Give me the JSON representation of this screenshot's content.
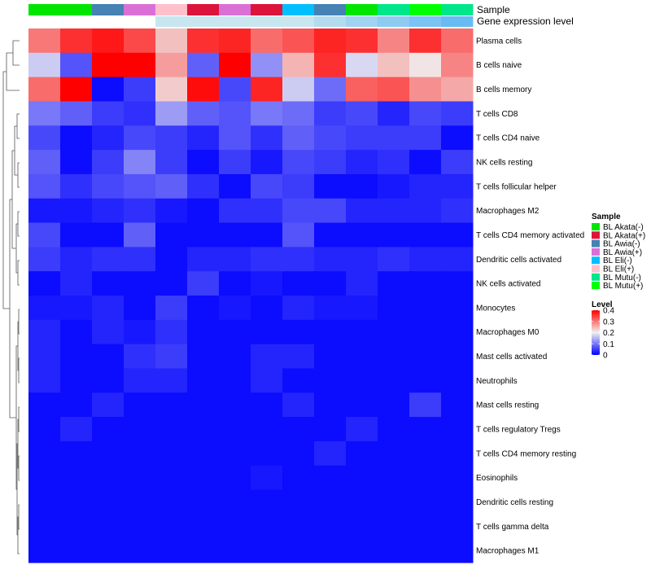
{
  "annotation_labels": [
    "Sample",
    "Gene expression level"
  ],
  "legend": {
    "sample_title": "Sample",
    "level_title": "Level",
    "samples": [
      {
        "label": "BL Akata(-)",
        "color": "#00e600"
      },
      {
        "label": "BL Akata(+)",
        "color": "#dc143c"
      },
      {
        "label": "BL Awia(-)",
        "color": "#4682b4"
      },
      {
        "label": "BL Awia(+)",
        "color": "#da70d6"
      },
      {
        "label": "BL Eli(-)",
        "color": "#00bfff"
      },
      {
        "label": "BL Eli(+)",
        "color": "#ffc0cb"
      },
      {
        "label": "BL Mutu(-)",
        "color": "#00e68a"
      },
      {
        "label": "BL Mutu(+)",
        "color": "#00ff00"
      }
    ],
    "level_ticks": [
      "0.4",
      "0.3",
      "0.2",
      "0.1",
      "0"
    ],
    "level_tick_values": [
      0.4,
      0.3,
      0.2,
      0.1,
      0
    ],
    "scale_colors": {
      "low": "#0000ff",
      "mid": "#f0f0f0",
      "high": "#ff0000"
    }
  },
  "chart_data": {
    "type": "heatmap",
    "title": "",
    "color_range": [
      0,
      0.4
    ],
    "column_sample_colors": [
      "#00e600",
      "#00e600",
      "#4682b4",
      "#da70d6",
      "#ffc0cb",
      "#dc143c",
      "#da70d6",
      "#dc143c",
      "#00bfff",
      "#4682b4",
      "#00e600",
      "#00e68a",
      "#00ff00",
      "#00e68a"
    ],
    "expression_bar_colors": [
      "#ffffff",
      "#ffffff",
      "#ffffff",
      "#ffffff",
      "#c8e6f0",
      "#c8e6f0",
      "#c8e6f0",
      "#c8e6f0",
      "#c8e6f0",
      "#b4dcef",
      "#9fd3f0",
      "#8dcbf1",
      "#7bc3f2",
      "#66bcf2"
    ],
    "rows": [
      "Plasma cells",
      "B cells naive",
      "B cells memory",
      "T cells CD8",
      "T cells CD4 naive",
      "NK cells resting",
      "T cells follicular helper",
      "Macrophages M2",
      "T cells CD4 memory activated",
      "Dendritic cells activated",
      "NK cells activated",
      "Monocytes",
      "Macrophages M0",
      "Mast cells activated",
      "Neutrophils",
      "Mast cells resting",
      "T cells regulatory  Tregs",
      "T cells CD4 memory resting",
      "Eosinophils",
      "Dendritic cells resting",
      "T cells gamma delta",
      "Macrophages M1"
    ],
    "values": [
      [
        0.3,
        0.36,
        0.38,
        0.34,
        0.24,
        0.36,
        0.37,
        0.31,
        0.33,
        0.37,
        0.36,
        0.29,
        0.36,
        0.31
      ],
      [
        0.17,
        0.07,
        0.4,
        0.4,
        0.27,
        0.08,
        0.4,
        0.12,
        0.25,
        0.36,
        0.18,
        0.24,
        0.21,
        0.29
      ],
      [
        0.31,
        0.4,
        0.01,
        0.05,
        0.23,
        0.39,
        0.06,
        0.37,
        0.17,
        0.09,
        0.32,
        0.33,
        0.28,
        0.26
      ],
      [
        0.1,
        0.08,
        0.05,
        0.04,
        0.13,
        0.08,
        0.07,
        0.1,
        0.09,
        0.05,
        0.06,
        0.03,
        0.06,
        0.05
      ],
      [
        0.06,
        0.01,
        0.03,
        0.06,
        0.05,
        0.03,
        0.07,
        0.04,
        0.08,
        0.06,
        0.05,
        0.05,
        0.05,
        0.01
      ],
      [
        0.08,
        0.01,
        0.05,
        0.11,
        0.05,
        0.01,
        0.05,
        0.02,
        0.06,
        0.05,
        0.03,
        0.04,
        0.01,
        0.05
      ],
      [
        0.07,
        0.04,
        0.06,
        0.07,
        0.08,
        0.04,
        0.01,
        0.06,
        0.05,
        0.01,
        0.01,
        0.02,
        0.03,
        0.03
      ],
      [
        0.02,
        0.02,
        0.03,
        0.04,
        0.02,
        0.01,
        0.04,
        0.04,
        0.06,
        0.06,
        0.03,
        0.03,
        0.03,
        0.04
      ],
      [
        0.06,
        0.01,
        0.01,
        0.08,
        0.01,
        0.01,
        0.01,
        0.01,
        0.07,
        0.01,
        0.01,
        0.01,
        0.01,
        0.01
      ],
      [
        0.05,
        0.03,
        0.04,
        0.04,
        0.01,
        0.03,
        0.03,
        0.04,
        0.04,
        0.03,
        0.03,
        0.04,
        0.03,
        0.03
      ],
      [
        0.01,
        0.03,
        0.01,
        0.01,
        0.01,
        0.05,
        0.01,
        0.02,
        0.01,
        0.01,
        0.03,
        0.01,
        0.01,
        0.01
      ],
      [
        0.02,
        0.02,
        0.03,
        0.01,
        0.05,
        0.01,
        0.02,
        0.01,
        0.03,
        0.02,
        0.02,
        0.01,
        0.01,
        0.01
      ],
      [
        0.03,
        0.01,
        0.03,
        0.02,
        0.04,
        0.01,
        0.01,
        0.01,
        0.01,
        0.01,
        0.01,
        0.01,
        0.01,
        0.01
      ],
      [
        0.03,
        0.01,
        0.01,
        0.04,
        0.05,
        0.01,
        0.01,
        0.03,
        0.03,
        0.01,
        0.01,
        0.01,
        0.01,
        0.01
      ],
      [
        0.03,
        0.01,
        0.01,
        0.03,
        0.03,
        0.01,
        0.01,
        0.03,
        0.01,
        0.01,
        0.01,
        0.01,
        0.01,
        0.01
      ],
      [
        0.01,
        0.01,
        0.03,
        0.01,
        0.01,
        0.01,
        0.01,
        0.01,
        0.03,
        0.01,
        0.01,
        0.01,
        0.05,
        0.01
      ],
      [
        0.01,
        0.03,
        0.01,
        0.01,
        0.01,
        0.01,
        0.01,
        0.01,
        0.01,
        0.01,
        0.03,
        0.01,
        0.01,
        0.01
      ],
      [
        0.01,
        0.01,
        0.01,
        0.01,
        0.01,
        0.01,
        0.01,
        0.01,
        0.01,
        0.03,
        0.01,
        0.01,
        0.01,
        0.01
      ],
      [
        0.01,
        0.01,
        0.01,
        0.01,
        0.01,
        0.01,
        0.01,
        0.02,
        0.01,
        0.01,
        0.01,
        0.01,
        0.01,
        0.01
      ],
      [
        0.01,
        0.01,
        0.01,
        0.01,
        0.01,
        0.01,
        0.01,
        0.01,
        0.01,
        0.01,
        0.01,
        0.01,
        0.01,
        0.01
      ],
      [
        0.01,
        0.01,
        0.01,
        0.01,
        0.01,
        0.01,
        0.01,
        0.01,
        0.01,
        0.01,
        0.01,
        0.01,
        0.01,
        0.01
      ],
      [
        0.01,
        0.01,
        0.01,
        0.01,
        0.01,
        0.01,
        0.01,
        0.01,
        0.01,
        0.01,
        0.01,
        0.01,
        0.01,
        0.01
      ]
    ]
  }
}
